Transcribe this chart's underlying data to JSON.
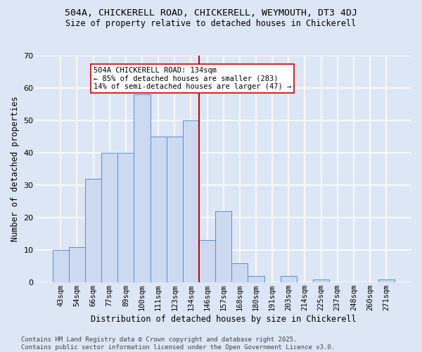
{
  "title_line1": "504A, CHICKERELL ROAD, CHICKERELL, WEYMOUTH, DT3 4DJ",
  "title_line2": "Size of property relative to detached houses in Chickerell",
  "xlabel": "Distribution of detached houses by size in Chickerell",
  "ylabel": "Number of detached properties",
  "categories": [
    "43sqm",
    "54sqm",
    "66sqm",
    "77sqm",
    "89sqm",
    "100sqm",
    "111sqm",
    "123sqm",
    "134sqm",
    "146sqm",
    "157sqm",
    "168sqm",
    "180sqm",
    "191sqm",
    "203sqm",
    "214sqm",
    "225sqm",
    "237sqm",
    "248sqm",
    "260sqm",
    "271sqm"
  ],
  "values": [
    10,
    11,
    32,
    40,
    40,
    58,
    45,
    45,
    50,
    13,
    22,
    6,
    2,
    0,
    2,
    0,
    1,
    0,
    0,
    0,
    1
  ],
  "bar_color": "#ccd9f0",
  "bar_edge_color": "#5b8dd9",
  "vline_x_index": 8,
  "vline_color": "#cc0000",
  "annotation_text": "504A CHICKERELL ROAD: 134sqm\n← 85% of detached houses are smaller (283)\n14% of semi-detached houses are larger (47) →",
  "annotation_box_color": "#ffffff",
  "annotation_box_edge": "#cc0000",
  "ylim": [
    0,
    70
  ],
  "yticks": [
    0,
    10,
    20,
    30,
    40,
    50,
    60,
    70
  ],
  "footer_text": "Contains HM Land Registry data © Crown copyright and database right 2025.\nContains public sector information licensed under the Open Government Licence v3.0.",
  "background_color": "#dce6f5",
  "plot_background_color": "#dce6f5",
  "grid_color": "#ffffff",
  "title_fontsize": 9.5,
  "subtitle_fontsize": 8.5,
  "axis_label_fontsize": 8.5,
  "tick_fontsize": 7.5,
  "footer_fontsize": 6.5,
  "annotation_fontsize": 7.5
}
